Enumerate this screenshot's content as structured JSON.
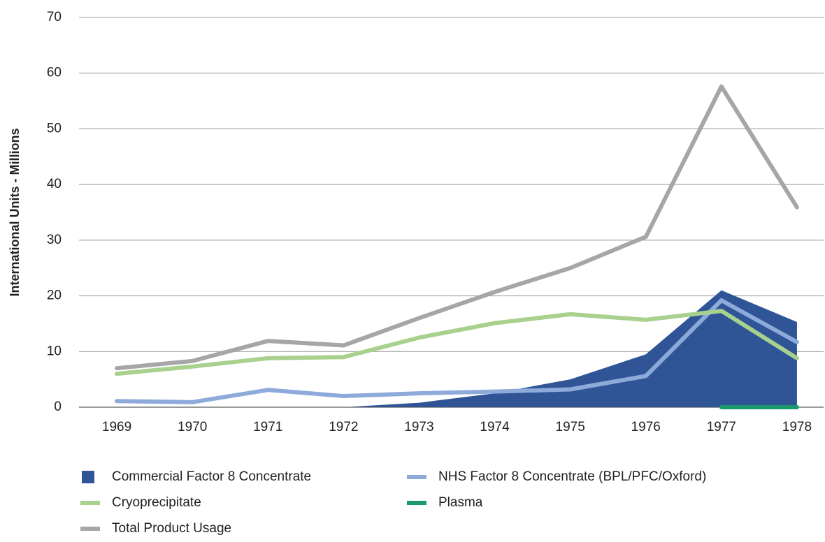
{
  "chart_data": {
    "type": "line",
    "y_label": "International Units - Millions",
    "categories": [
      "1969",
      "1970",
      "1971",
      "1972",
      "1973",
      "1974",
      "1975",
      "1976",
      "1977",
      "1978"
    ],
    "series": [
      {
        "name": "Commercial Factor 8 Concentrate",
        "type": "area",
        "color": "#2f5597",
        "values": [
          null,
          null,
          null,
          0,
          0.8,
          2.5,
          5,
          9.5,
          21,
          15.3
        ]
      },
      {
        "name": "NHS Factor 8 Concentrate (BPL/PFC/Oxford)",
        "type": "line",
        "color": "#8eaadb",
        "values": [
          1.1,
          0.9,
          3.1,
          2.0,
          2.5,
          2.8,
          3.2,
          5.6,
          19.2,
          11.7
        ]
      },
      {
        "name": "Cryoprecipitate",
        "type": "line",
        "color": "#a9d18e",
        "values": [
          6.0,
          7.3,
          8.8,
          9.0,
          12.5,
          15.1,
          16.7,
          15.7,
          17.3,
          8.8
        ]
      },
      {
        "name": "Plasma",
        "type": "line",
        "color": "#1a9a6c",
        "values": [
          null,
          null,
          null,
          null,
          null,
          null,
          null,
          null,
          0,
          0
        ]
      },
      {
        "name": "Total Product Usage",
        "type": "line",
        "color": "#a6a6a6",
        "values": [
          7.0,
          8.3,
          11.9,
          11.1,
          16.0,
          20.7,
          25.0,
          30.6,
          57.6,
          35.9
        ]
      }
    ],
    "ylim": [
      0,
      70
    ],
    "yticks": [
      0,
      10,
      20,
      30,
      40,
      50,
      60,
      70
    ],
    "grid": true,
    "legend": "bottom"
  }
}
